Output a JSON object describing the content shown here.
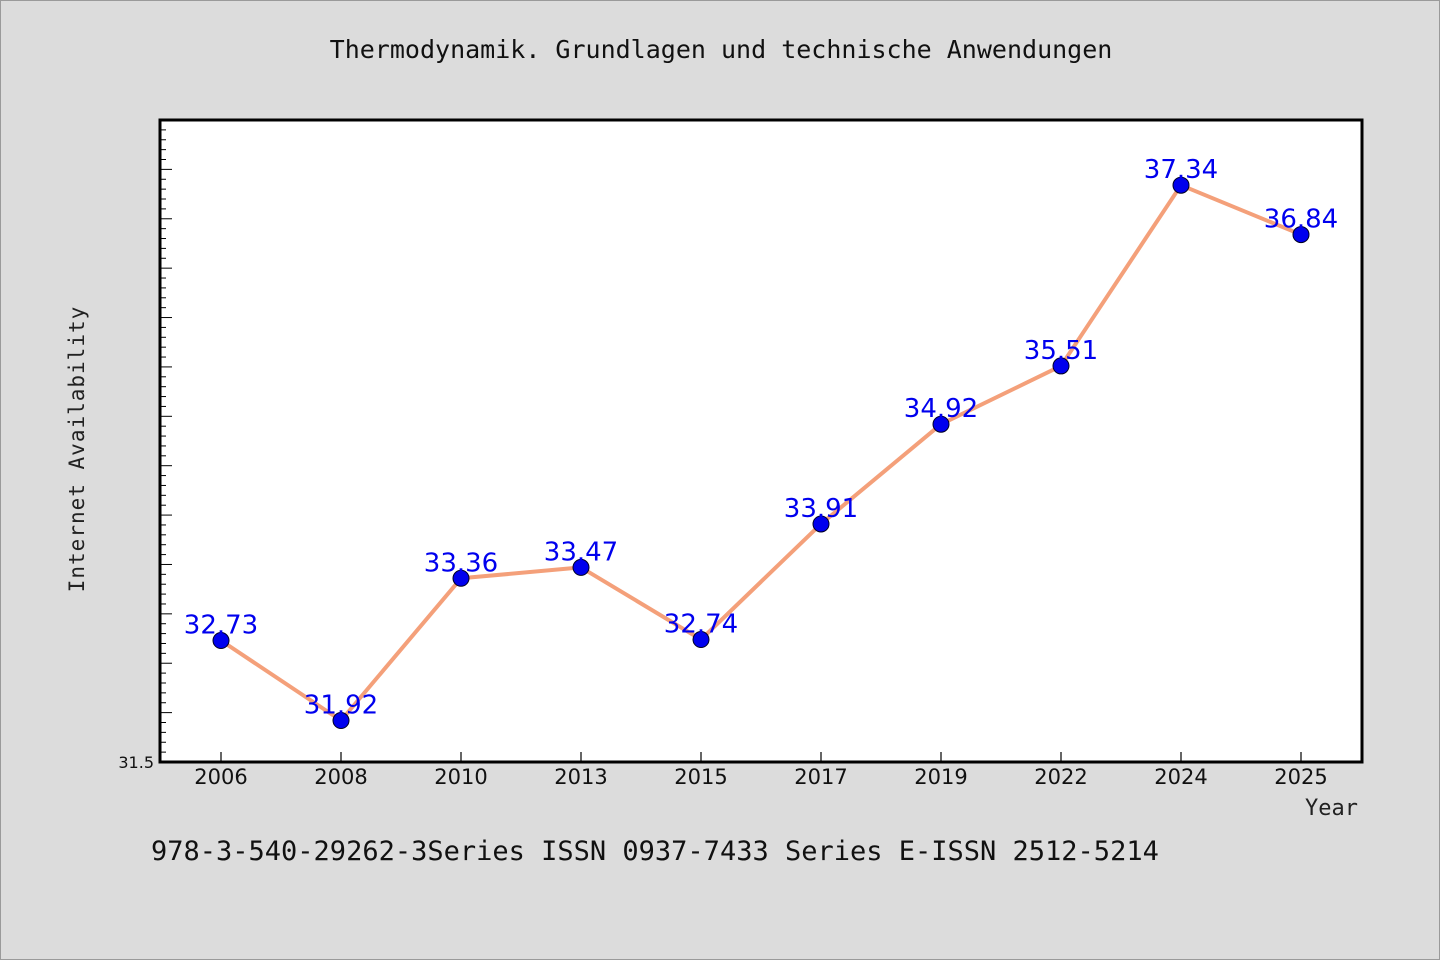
{
  "chart_data": {
    "type": "line",
    "title": "Thermodynamik. Grundlagen und technische Anwendungen",
    "footer": "978-3-540-29262-3Series ISSN 0937-7433 Series E-ISSN 2512-5214",
    "xlabel": "Year",
    "ylabel": "Internet Availability",
    "categories": [
      "2006",
      "2008",
      "2010",
      "2013",
      "2015",
      "2017",
      "2019",
      "2022",
      "2024",
      "2025"
    ],
    "series": [
      {
        "values": [
          32.73,
          31.92,
          33.36,
          33.47,
          32.74,
          33.91,
          34.92,
          35.51,
          37.34,
          36.84
        ],
        "labels": [
          "32.73",
          "31.92",
          "33.36",
          "33.47",
          "32.74",
          "33.91",
          "34.92",
          "35.51",
          "37.34",
          "36.84"
        ]
      }
    ],
    "ylim": [
      31.5,
      38
    ],
    "ytick_labels": [
      "31.5"
    ],
    "grid": false,
    "colors": {
      "line": "#f4a07a",
      "marker": "#0000ee",
      "data_label": "#0000ee",
      "background": "#dcdcdc",
      "plot_background": "#ffffff"
    }
  }
}
